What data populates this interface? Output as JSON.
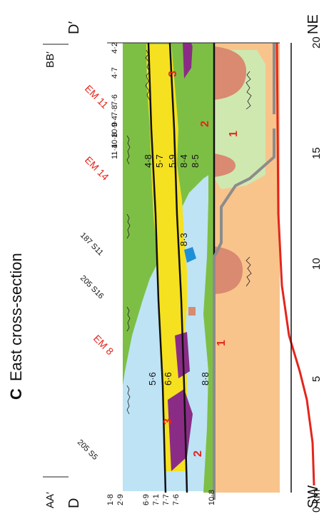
{
  "figure": {
    "panel_letter": "C",
    "panel_title": "East cross-section",
    "endpoint_left": "D",
    "endpoint_right": "D′",
    "section_left": "AA′",
    "section_right": "BB′",
    "direction_left": "SW",
    "direction_right": "NE"
  },
  "axis": {
    "unit_label": "0 km",
    "ticks": [
      "5",
      "10",
      "15",
      "20"
    ]
  },
  "wells": {
    "EM11": "EM 11",
    "EM14": "EM 14",
    "EM8": "EM 8",
    "W187": "187 S11",
    "W205a": "205 S16",
    "W205b": "205 S5"
  },
  "depth_labels_top": [
    "4·2",
    "4·7",
    "7·6",
    "7·8",
    "9·4",
    "10·0",
    "10·8",
    "11·4"
  ],
  "depth_labels_bottom": [
    "1·8",
    "2·9",
    "6·9",
    "7·1",
    "7·7",
    "7·6",
    "10·8"
  ],
  "inner_labels": {
    "a48": "4·8",
    "a57": "5·7",
    "a59": "5·9",
    "a84": "8·4",
    "a85": "8·5",
    "a83": "8·3",
    "a56": "5·6",
    "a66": "6·6",
    "a88": "8·8"
  },
  "unit_numbers": [
    "3",
    "2",
    "1",
    "3",
    "2",
    "1"
  ],
  "colors": {
    "green": "#7dbf45",
    "lightblue": "#bde3f5",
    "yellow": "#f5e11f",
    "purple": "#8a2c86",
    "salmon": "#d98a70",
    "orange": "#f8c48c",
    "paleGreen": "#cfe8b0",
    "red": "#e3261c",
    "gray": "#8c8c8c"
  }
}
